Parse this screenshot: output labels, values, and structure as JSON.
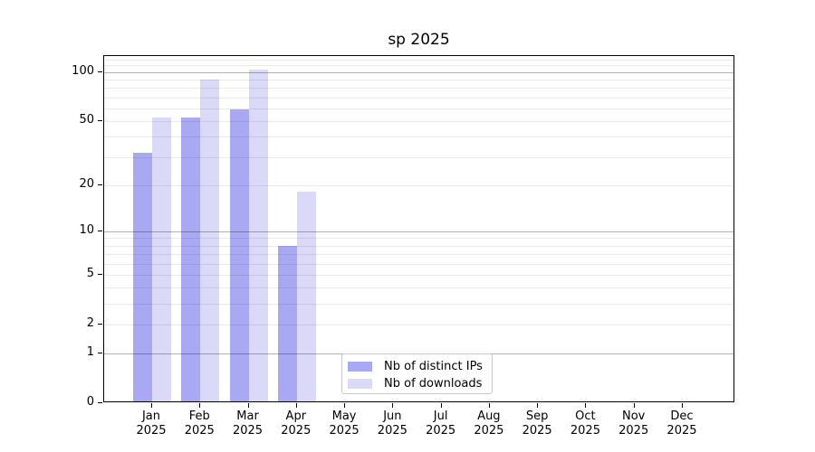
{
  "chart_data": {
    "type": "bar",
    "title": "sp 2025",
    "categories": [
      "Jan",
      "Feb",
      "Mar",
      "Apr",
      "May",
      "Jun",
      "Jul",
      "Aug",
      "Sep",
      "Oct",
      "Nov",
      "Dec"
    ],
    "category_year": "2025",
    "series": [
      {
        "name": "Nb of distinct IPs",
        "color": "#a9a9f3",
        "values": [
          32,
          53,
          59,
          8,
          0,
          0,
          0,
          0,
          0,
          0,
          0,
          0
        ]
      },
      {
        "name": "Nb of downloads",
        "color": "#dadaf8",
        "values": [
          53,
          90,
          104,
          18,
          0,
          0,
          0,
          0,
          0,
          0,
          0,
          0
        ]
      }
    ],
    "y_scale": "log10(value+1)",
    "y_tick_labels": [
      "100",
      "50",
      "20",
      "10",
      "5",
      "2",
      "1",
      "0"
    ],
    "y_tick_values": [
      100,
      50,
      20,
      10,
      5,
      2,
      1,
      0
    ],
    "y_major_gridline_values": [
      1,
      10,
      100
    ],
    "y_minor_gridline_values": [
      2,
      3,
      4,
      5,
      6,
      7,
      8,
      9,
      20,
      30,
      40,
      50,
      60,
      70,
      80,
      90,
      110,
      120
    ],
    "ylim": [
      0,
      125
    ],
    "grid": "on",
    "legend_position": "lower-center-left"
  }
}
